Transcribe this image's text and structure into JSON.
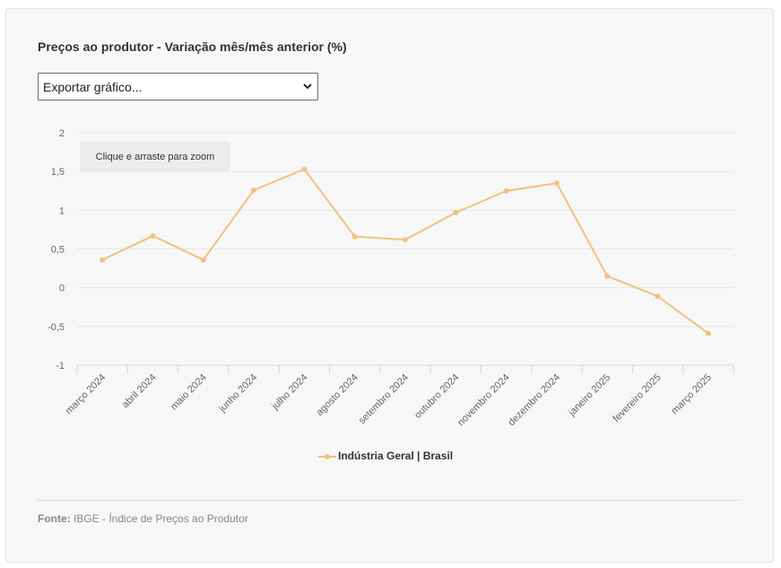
{
  "title": "Preços ao produtor - Variação mês/mês anterior (%)",
  "export_select": {
    "selected": "Exportar gráfico..."
  },
  "zoom_hint": "Clique e arraste para zoom",
  "source": {
    "label": "Fonte:",
    "text": "IBGE - Índice de Preços ao Produtor"
  },
  "colors": {
    "series": "#f0c27e",
    "grid": "#e6e6e6",
    "axis": "#ccd6eb"
  },
  "chart_data": {
    "type": "line",
    "categories": [
      "março 2024",
      "abril 2024",
      "maio 2024",
      "junho 2024",
      "julho 2024",
      "agosto 2024",
      "setembro 2024",
      "outubro 2024",
      "novembro 2024",
      "dezembro 2024",
      "janeiro 2025",
      "fevereiro 2025",
      "março 2025"
    ],
    "series": [
      {
        "name": "Indústria Geral | Brasil",
        "values": [
          0.36,
          0.67,
          0.36,
          1.26,
          1.53,
          0.66,
          0.62,
          0.97,
          1.25,
          1.35,
          0.15,
          -0.11,
          -0.59
        ]
      }
    ],
    "y_ticks": [
      "2",
      "1,5",
      "1",
      "0,5",
      "0",
      "-0,5",
      "-1"
    ],
    "ylim": [
      -1,
      2
    ],
    "grid": true,
    "legend_position": "bottom-center"
  }
}
